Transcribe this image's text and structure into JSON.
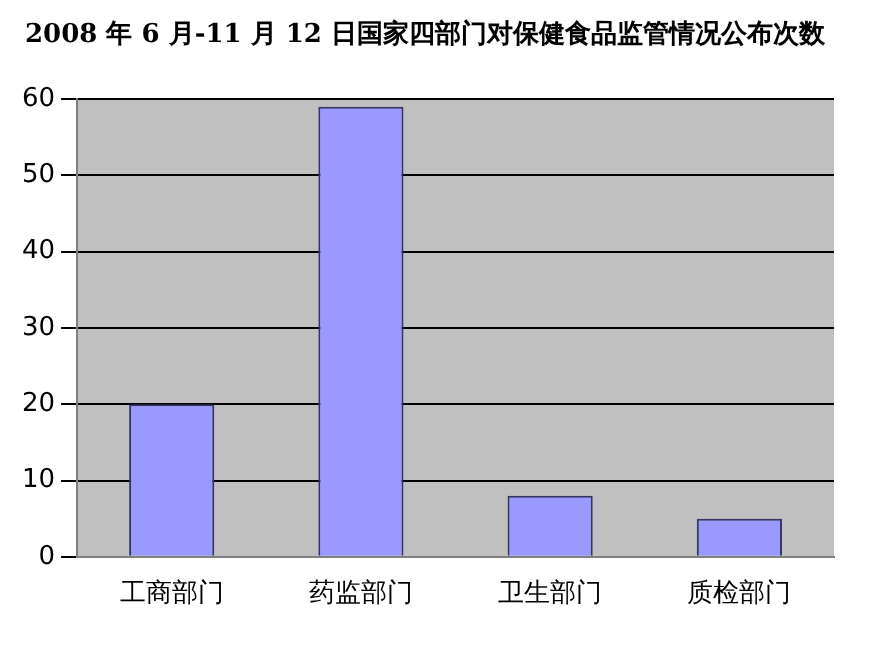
{
  "chart_data": {
    "type": "bar",
    "title": "2008 年 6 月-11 月 12 日国家四部门对保健食品监管情况公布次数",
    "categories": [
      "工商部门",
      "药监部门",
      "卫生部门",
      "质检部门"
    ],
    "values": [
      20,
      59,
      8,
      5
    ],
    "color": "#9999ff",
    "ylim": [
      0,
      60
    ],
    "yticks": [
      0,
      10,
      20,
      30,
      40,
      50,
      60
    ],
    "grid": "y",
    "legend": false
  }
}
